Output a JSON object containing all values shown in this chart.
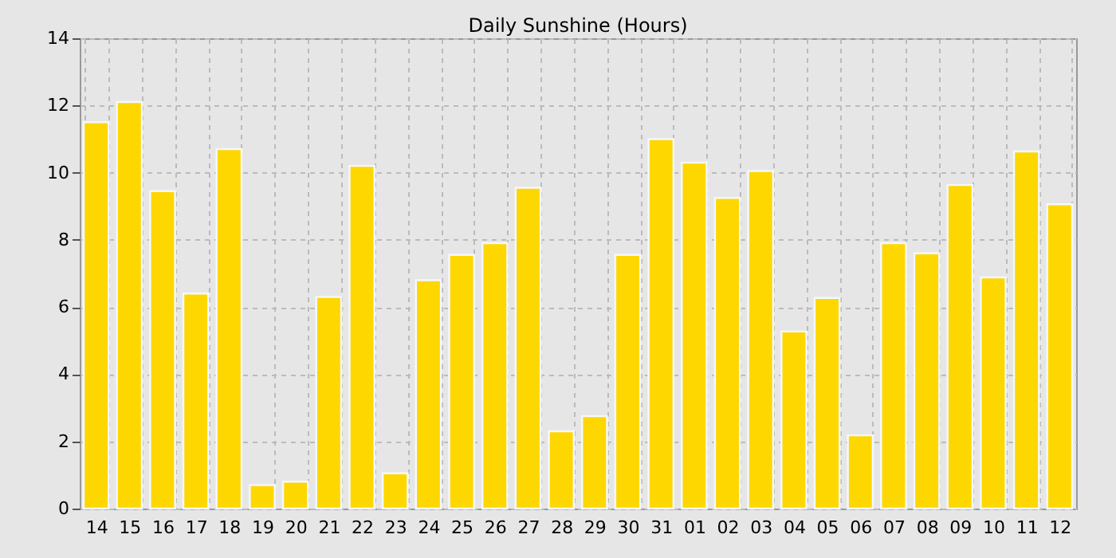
{
  "chart_data": {
    "type": "bar",
    "title": "Daily Sunshine (Hours)",
    "categories": [
      "14",
      "15",
      "16",
      "17",
      "18",
      "19",
      "20",
      "21",
      "22",
      "23",
      "24",
      "25",
      "26",
      "27",
      "28",
      "29",
      "30",
      "31",
      "01",
      "02",
      "03",
      "04",
      "05",
      "06",
      "07",
      "08",
      "09",
      "10",
      "11",
      "12"
    ],
    "values": [
      11.5,
      12.1,
      9.45,
      6.4,
      10.7,
      0.7,
      0.8,
      6.3,
      10.2,
      1.05,
      6.8,
      7.55,
      7.9,
      9.55,
      2.3,
      2.75,
      7.55,
      11.0,
      10.3,
      9.25,
      10.05,
      5.27,
      6.27,
      2.18,
      7.9,
      7.6,
      9.63,
      6.88,
      10.63,
      9.06
    ],
    "color": "#ffd700",
    "ylim": [
      0,
      14
    ],
    "yticks": [
      0,
      2,
      4,
      6,
      8,
      10,
      12,
      14
    ],
    "grid": true
  }
}
